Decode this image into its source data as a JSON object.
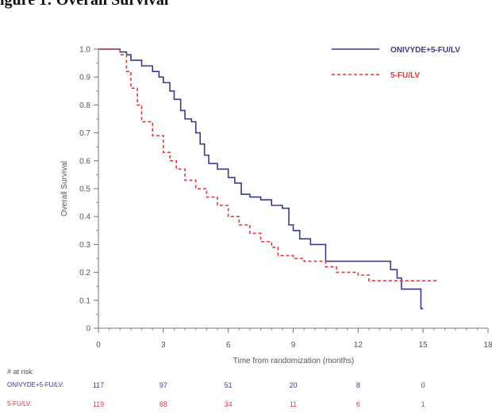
{
  "page": {
    "title_fragment": "igure 1: Overall Survival"
  },
  "colors": {
    "series_a": "#3a3a8c",
    "series_b": "#e8353a",
    "axis": "#777777",
    "text": "#555555"
  },
  "chart_data": {
    "type": "line",
    "title": "",
    "xlabel": "Time from randomization (months)",
    "ylabel": "Overall Survival",
    "xlim": [
      0,
      18
    ],
    "ylim": [
      0,
      1.0
    ],
    "xticks": [
      0,
      3,
      6,
      9,
      12,
      15,
      18
    ],
    "yticks": [
      0,
      0.1,
      0.2,
      0.3,
      0.4,
      0.5,
      0.6,
      0.7,
      0.8,
      0.9,
      1.0
    ],
    "xtick_labels": [
      "0",
      "3",
      "6",
      "9",
      "12",
      "15",
      "18"
    ],
    "ytick_labels": [
      "0",
      "0.1",
      "0.2",
      "0.3",
      "0.4",
      "0.5",
      "0.6",
      "0.7",
      "0.8",
      "0.9",
      "1.0"
    ],
    "legend_position": "top-right",
    "series": [
      {
        "name": "ONIVYDE+5-FU/LV",
        "color": "#3a3a8c",
        "dash": "solid",
        "points": [
          [
            0,
            1.0
          ],
          [
            0.8,
            1.0
          ],
          [
            1.0,
            0.99
          ],
          [
            1.3,
            0.98
          ],
          [
            1.5,
            0.96
          ],
          [
            2.0,
            0.94
          ],
          [
            2.5,
            0.92
          ],
          [
            2.8,
            0.9
          ],
          [
            3.0,
            0.88
          ],
          [
            3.3,
            0.85
          ],
          [
            3.5,
            0.82
          ],
          [
            3.8,
            0.78
          ],
          [
            4.0,
            0.75
          ],
          [
            4.3,
            0.74
          ],
          [
            4.5,
            0.7
          ],
          [
            4.7,
            0.66
          ],
          [
            4.9,
            0.62
          ],
          [
            5.1,
            0.59
          ],
          [
            5.5,
            0.57
          ],
          [
            6.0,
            0.54
          ],
          [
            6.3,
            0.52
          ],
          [
            6.6,
            0.48
          ],
          [
            7.0,
            0.47
          ],
          [
            7.5,
            0.46
          ],
          [
            8.0,
            0.44
          ],
          [
            8.5,
            0.43
          ],
          [
            8.8,
            0.37
          ],
          [
            9.0,
            0.35
          ],
          [
            9.3,
            0.32
          ],
          [
            9.8,
            0.3
          ],
          [
            10.5,
            0.24
          ],
          [
            11.0,
            0.24
          ],
          [
            12.0,
            0.24
          ],
          [
            13.0,
            0.24
          ],
          [
            13.5,
            0.21
          ],
          [
            13.8,
            0.18
          ],
          [
            14.0,
            0.14
          ],
          [
            14.8,
            0.14
          ],
          [
            14.9,
            0.07
          ],
          [
            15.0,
            0.07
          ]
        ]
      },
      {
        "name": "5-FU/LV",
        "color": "#e8353a",
        "dash": "dashed",
        "points": [
          [
            0,
            1.0
          ],
          [
            0.8,
            1.0
          ],
          [
            1.0,
            0.98
          ],
          [
            1.3,
            0.92
          ],
          [
            1.5,
            0.86
          ],
          [
            1.8,
            0.8
          ],
          [
            2.0,
            0.74
          ],
          [
            2.5,
            0.69
          ],
          [
            3.0,
            0.63
          ],
          [
            3.3,
            0.6
          ],
          [
            3.6,
            0.57
          ],
          [
            4.0,
            0.53
          ],
          [
            4.5,
            0.5
          ],
          [
            5.0,
            0.47
          ],
          [
            5.5,
            0.44
          ],
          [
            6.0,
            0.4
          ],
          [
            6.5,
            0.37
          ],
          [
            7.0,
            0.34
          ],
          [
            7.5,
            0.31
          ],
          [
            8.0,
            0.29
          ],
          [
            8.3,
            0.26
          ],
          [
            9.0,
            0.25
          ],
          [
            9.5,
            0.24
          ],
          [
            10.0,
            0.24
          ],
          [
            10.5,
            0.22
          ],
          [
            11.0,
            0.2
          ],
          [
            12.0,
            0.19
          ],
          [
            12.5,
            0.17
          ],
          [
            13.0,
            0.17
          ],
          [
            14.0,
            0.17
          ],
          [
            15.0,
            0.17
          ],
          [
            15.7,
            0.17
          ]
        ]
      }
    ]
  },
  "risk_table": {
    "header": "# at risk:",
    "rows": [
      {
        "label": "ONIVYDE+5-FU/LV:",
        "color": "#3a3a8c",
        "values": [
          "117",
          "97",
          "51",
          "20",
          "8",
          "0"
        ]
      },
      {
        "label": "5-FU/LV:",
        "color": "#e8353a",
        "values": [
          "119",
          "68",
          "34",
          "11",
          "6",
          "1"
        ]
      }
    ]
  }
}
